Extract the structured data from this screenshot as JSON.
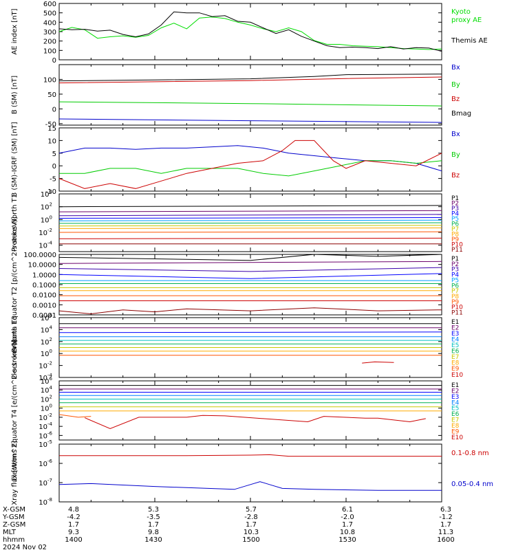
{
  "date_label": "2024 Nov 02",
  "ephemeris": {
    "rows": [
      {
        "label": "X-GSM",
        "values": [
          "4.8",
          "5.3",
          "5.7",
          "6.1",
          "6.3"
        ]
      },
      {
        "label": "Y-GSM",
        "values": [
          "-4.2",
          "-3.5",
          "-2.8",
          "-2.0",
          "-1.2"
        ]
      },
      {
        "label": "Z-GSM",
        "values": [
          "1.7",
          "1.7",
          "1.7",
          "1.7",
          "1.7"
        ]
      },
      {
        "label": "MLT",
        "values": [
          "9.3",
          "9.8",
          "10.3",
          "10.8",
          "11.3"
        ]
      },
      {
        "label": "hhmm",
        "values": [
          "1400",
          "1430",
          "1500",
          "1530",
          "1600"
        ]
      }
    ]
  },
  "chart_data": [
    {
      "type": "line",
      "ylabel": "AE index [nT]",
      "x_range": [
        "1400",
        "1600"
      ],
      "ylim": [
        0,
        600
      ],
      "yticks": [
        0,
        100,
        200,
        300,
        400,
        500,
        600
      ],
      "series": [
        {
          "name": "Kyoto proxy AE",
          "color": "#00dd00",
          "x": [
            0,
            4,
            8,
            12,
            16,
            20,
            24,
            28,
            32,
            36,
            40,
            44,
            48,
            52,
            56,
            60,
            64,
            68,
            72,
            76,
            80,
            84,
            88,
            92,
            96,
            100,
            104,
            108,
            112,
            116,
            120
          ],
          "y": [
            300,
            345,
            320,
            230,
            245,
            255,
            240,
            260,
            340,
            390,
            330,
            445,
            455,
            440,
            400,
            370,
            330,
            300,
            340,
            300,
            205,
            165,
            165,
            150,
            145,
            140,
            130,
            120,
            115,
            110,
            115
          ]
        },
        {
          "name": "Themis AE",
          "color": "#000000",
          "x": [
            0,
            4,
            8,
            12,
            16,
            20,
            24,
            28,
            32,
            36,
            40,
            44,
            48,
            52,
            56,
            60,
            64,
            68,
            72,
            76,
            80,
            84,
            88,
            92,
            96,
            100,
            104,
            108,
            112,
            116,
            120
          ],
          "y": [
            330,
            320,
            325,
            305,
            315,
            270,
            245,
            275,
            370,
            510,
            500,
            500,
            460,
            470,
            410,
            400,
            340,
            280,
            320,
            250,
            200,
            150,
            130,
            135,
            130,
            120,
            140,
            115,
            130,
            125,
            90
          ]
        }
      ]
    },
    {
      "type": "line",
      "ylabel": "B (SM) [nT]",
      "ylim": [
        -55,
        150
      ],
      "yticks": [
        -50,
        0,
        50,
        100
      ],
      "series": [
        {
          "name": "Bx",
          "color": "#0000cc",
          "x": [
            0,
            60,
            120
          ],
          "y": [
            -34,
            -40,
            -46
          ]
        },
        {
          "name": "By",
          "color": "#00cc00",
          "x": [
            0,
            60,
            120
          ],
          "y": [
            24,
            18,
            10
          ]
        },
        {
          "name": "Bz",
          "color": "#cc0000",
          "x": [
            0,
            30,
            60,
            90,
            120
          ],
          "y": [
            88,
            92,
            96,
            103,
            108
          ]
        },
        {
          "name": "Bmag",
          "color": "#000000",
          "x": [
            0,
            30,
            60,
            80,
            90,
            120
          ],
          "y": [
            95,
            98,
            102,
            110,
            116,
            118
          ]
        }
      ]
    },
    {
      "type": "line",
      "ylabel": "B (SM)-IGRF (SM) [nT]",
      "ylim": [
        -10,
        15
      ],
      "yticks": [
        -10,
        -5,
        0,
        5,
        10,
        15
      ],
      "series": [
        {
          "name": "Bx",
          "color": "#0000cc",
          "x": [
            0,
            8,
            16,
            24,
            32,
            40,
            48,
            56,
            64,
            72,
            80,
            88,
            96,
            104,
            112,
            120
          ],
          "y": [
            5,
            7,
            7,
            6.5,
            7,
            7,
            7.5,
            8,
            7,
            5,
            4,
            3,
            2,
            2,
            1,
            -2
          ]
        },
        {
          "name": "By",
          "color": "#00cc00",
          "x": [
            0,
            8,
            16,
            24,
            32,
            40,
            48,
            56,
            64,
            72,
            80,
            88,
            96,
            104,
            112,
            120
          ],
          "y": [
            -3,
            -3,
            -1,
            -1,
            -3,
            -1,
            -1,
            -1,
            -3,
            -4,
            -2,
            0,
            2,
            2,
            1,
            2
          ]
        },
        {
          "name": "Bz",
          "color": "#cc0000",
          "x": [
            0,
            8,
            16,
            24,
            32,
            40,
            48,
            56,
            64,
            70,
            74,
            80,
            86,
            90,
            96,
            104,
            112,
            120
          ],
          "y": [
            -5,
            -9,
            -7,
            -9,
            -6,
            -3,
            -1,
            1,
            2,
            6,
            10,
            10,
            2,
            -1,
            2,
            1,
            0,
            5
          ]
        }
      ]
    },
    {
      "type": "line",
      "ylabel": "Protons North T1",
      "ylim_log": [
        -5,
        4
      ],
      "yticks_log": [
        -4,
        -2,
        0,
        2,
        4
      ],
      "series": [
        {
          "name": "P1",
          "color": "#000000",
          "x": [
            0,
            120
          ],
          "y_log": [
            2.0,
            2.2
          ]
        },
        {
          "name": "P2",
          "color": "#6a006a",
          "x": [
            0,
            120
          ],
          "y_log": [
            1.2,
            1.4
          ]
        },
        {
          "name": "P3",
          "color": "#3a00aa",
          "x": [
            0,
            120
          ],
          "y_log": [
            0.6,
            0.8
          ]
        },
        {
          "name": "P4",
          "color": "#0000ff",
          "x": [
            0,
            120
          ],
          "y_log": [
            0.2,
            0.3
          ]
        },
        {
          "name": "P5",
          "color": "#00a0ff",
          "x": [
            0,
            120
          ],
          "y_log": [
            -0.2,
            -0.1
          ]
        },
        {
          "name": "P6",
          "color": "#00b050",
          "x": [
            0,
            120
          ],
          "y_log": [
            -0.6,
            -0.5
          ]
        },
        {
          "name": "P7",
          "color": "#c8c800",
          "x": [
            0,
            120
          ],
          "y_log": [
            -1.0,
            -0.9
          ]
        },
        {
          "name": "P8",
          "color": "#ffaa00",
          "x": [
            0,
            120
          ],
          "y_log": [
            -1.4,
            -1.3
          ]
        },
        {
          "name": "P9",
          "color": "#ff5500",
          "x": [
            0,
            120
          ],
          "y_log": [
            -2.0,
            -1.9
          ]
        },
        {
          "name": "P10",
          "color": "#cc0000",
          "x": [
            0,
            120
          ],
          "y_log": [
            -3.0,
            -2.9
          ]
        },
        {
          "name": "P11",
          "color": "#8b0000",
          "x": [
            0,
            120
          ],
          "y_log": [
            -3.8,
            -3.8
          ]
        }
      ]
    },
    {
      "type": "line",
      "ylabel": "Protons Equator T2 [p/(cm^2-s-sr-keV)]",
      "ylim_log": [
        -4,
        2
      ],
      "yticks_log": [
        -4,
        -3,
        -2,
        -1,
        0,
        1,
        2
      ],
      "ytick_labels": [
        "0.0001",
        "0.0010",
        "0.0100",
        "0.1000",
        "1.0000",
        "10.0000",
        "100.0000"
      ],
      "series": [
        {
          "name": "P1",
          "color": "#000000",
          "x": [
            0,
            40,
            60,
            80,
            100,
            120
          ],
          "y_log": [
            1.7,
            1.5,
            1.4,
            2.0,
            1.8,
            2.0
          ]
        },
        {
          "name": "P2",
          "color": "#6a006a",
          "x": [
            0,
            120
          ],
          "y_log": [
            1.1,
            1.3
          ]
        },
        {
          "name": "P3",
          "color": "#3a00aa",
          "x": [
            0,
            60,
            120
          ],
          "y_log": [
            0.6,
            0.3,
            0.7
          ]
        },
        {
          "name": "P4",
          "color": "#0000ff",
          "x": [
            0,
            60,
            120
          ],
          "y_log": [
            0.0,
            -0.4,
            0.1
          ]
        },
        {
          "name": "P5",
          "color": "#00a0ff",
          "x": [
            0,
            120
          ],
          "y_log": [
            -0.6,
            -0.6
          ]
        },
        {
          "name": "P6",
          "color": "#00b050",
          "x": [
            0,
            120
          ],
          "y_log": [
            -0.9,
            -0.9
          ]
        },
        {
          "name": "P7",
          "color": "#c8c800",
          "x": [
            0,
            120
          ],
          "y_log": [
            -1.3,
            -1.3
          ]
        },
        {
          "name": "P8",
          "color": "#ffaa00",
          "x": [
            0,
            120
          ],
          "y_log": [
            -1.6,
            -1.6
          ]
        },
        {
          "name": "P9",
          "color": "#ff5500",
          "x": [
            0,
            120
          ],
          "y_log": [
            -2.1,
            -2.1
          ]
        },
        {
          "name": "P10",
          "color": "#cc0000",
          "x": [
            0,
            120
          ],
          "y_log": [
            -2.6,
            -2.6
          ]
        },
        {
          "name": "P11",
          "color": "#8b0000",
          "x": [
            0,
            10,
            20,
            30,
            40,
            60,
            80,
            100,
            120
          ],
          "y_log": [
            -3.6,
            -3.9,
            -3.5,
            -3.7,
            -3.4,
            -3.6,
            -3.3,
            -3.6,
            -3.5
          ]
        }
      ]
    },
    {
      "type": "line",
      "ylabel": "Electrons North T3",
      "ylim_log": [
        -4,
        6
      ],
      "yticks_log": [
        -4,
        -2,
        0,
        2,
        4,
        6
      ],
      "series": [
        {
          "name": "E1",
          "color": "#000000",
          "x": [
            0,
            120
          ],
          "y_log": [
            5.0,
            5.0
          ]
        },
        {
          "name": "E2",
          "color": "#6a006a",
          "x": [
            0,
            120
          ],
          "y_log": [
            4.3,
            4.3
          ]
        },
        {
          "name": "E3",
          "color": "#0000ff",
          "x": [
            0,
            120
          ],
          "y_log": [
            3.5,
            3.6
          ]
        },
        {
          "name": "E4",
          "color": "#0080ff",
          "x": [
            0,
            120
          ],
          "y_log": [
            2.8,
            2.8
          ]
        },
        {
          "name": "E5",
          "color": "#00c0c0",
          "x": [
            0,
            120
          ],
          "y_log": [
            2.2,
            2.2
          ]
        },
        {
          "name": "E6",
          "color": "#00b050",
          "x": [
            0,
            120
          ],
          "y_log": [
            1.6,
            1.6
          ]
        },
        {
          "name": "E7",
          "color": "#c8c800",
          "x": [
            0,
            120
          ],
          "y_log": [
            1.0,
            1.0
          ]
        },
        {
          "name": "E8",
          "color": "#ffaa00",
          "x": [
            0,
            120
          ],
          "y_log": [
            0.4,
            0.4
          ]
        },
        {
          "name": "E9",
          "color": "#ff5500",
          "x": [
            0,
            120
          ],
          "y_log": [
            -0.3,
            -0.3
          ]
        },
        {
          "name": "E10",
          "color": "#cc0000",
          "x": [
            95,
            99,
            105
          ],
          "y_log": [
            -1.6,
            -1.4,
            -1.5
          ]
        }
      ]
    },
    {
      "type": "line",
      "ylabel": "Electrons Equator T4 [e/(cm^2-s-sr-keV)]",
      "ylim_log": [
        -7,
        6
      ],
      "yticks_log": [
        -6,
        -4,
        -2,
        0,
        2,
        4,
        6
      ],
      "series": [
        {
          "name": "E1",
          "color": "#000000",
          "x": [
            0,
            120
          ],
          "y_log": [
            5.0,
            5.0
          ]
        },
        {
          "name": "E2",
          "color": "#6a006a",
          "x": [
            0,
            120
          ],
          "y_log": [
            4.2,
            4.2
          ]
        },
        {
          "name": "E3",
          "color": "#0000ff",
          "x": [
            0,
            120
          ],
          "y_log": [
            3.5,
            3.5
          ]
        },
        {
          "name": "E4",
          "color": "#0080ff",
          "x": [
            0,
            120
          ],
          "y_log": [
            2.8,
            2.8
          ]
        },
        {
          "name": "E5",
          "color": "#00c0c0",
          "x": [
            0,
            120
          ],
          "y_log": [
            2.0,
            2.0
          ]
        },
        {
          "name": "E6",
          "color": "#00b050",
          "x": [
            0,
            120
          ],
          "y_log": [
            1.2,
            1.2
          ]
        },
        {
          "name": "E7",
          "color": "#c8c800",
          "x": [
            0,
            120
          ],
          "y_log": [
            0.3,
            0.3
          ]
        },
        {
          "name": "E8",
          "color": "#ffaa00",
          "x": [
            0,
            120
          ],
          "y_log": [
            -0.6,
            -0.6
          ]
        },
        {
          "name": "E9",
          "color": "#ff5500",
          "x": [
            0,
            6,
            10
          ],
          "y_log": [
            -1.4,
            -2.0,
            -1.8
          ]
        },
        {
          "name": "E10",
          "color": "#cc0000",
          "x": [
            8,
            16,
            25,
            40,
            45,
            52,
            78,
            83,
            96,
            100,
            110,
            115
          ],
          "y_log": [
            -2.1,
            -4.5,
            -2.0,
            -2.0,
            -1.6,
            -1.7,
            -3.0,
            -1.8,
            -2.2,
            -2.2,
            -3.0,
            -2.3
          ]
        }
      ]
    },
    {
      "type": "line",
      "ylabel": "Xray flux [W/m^2]",
      "ylim_log": [
        -8,
        -5
      ],
      "yticks_log": [
        -8,
        -7,
        -6,
        -5
      ],
      "series": [
        {
          "name": "0.1-0.8 nm",
          "color": "#cc0000",
          "x": [
            0,
            40,
            60,
            66,
            72,
            120
          ],
          "y_log": [
            -5.6,
            -5.6,
            -5.57,
            -5.55,
            -5.63,
            -5.63
          ]
        },
        {
          "name": "0.05-0.4 nm",
          "color": "#0000cc",
          "x": [
            0,
            10,
            30,
            55,
            60,
            63,
            66,
            70,
            80,
            100,
            120
          ],
          "y_log": [
            -7.1,
            -7.05,
            -7.2,
            -7.35,
            -7.1,
            -6.95,
            -7.1,
            -7.3,
            -7.35,
            -7.4,
            -7.4
          ]
        }
      ]
    }
  ]
}
